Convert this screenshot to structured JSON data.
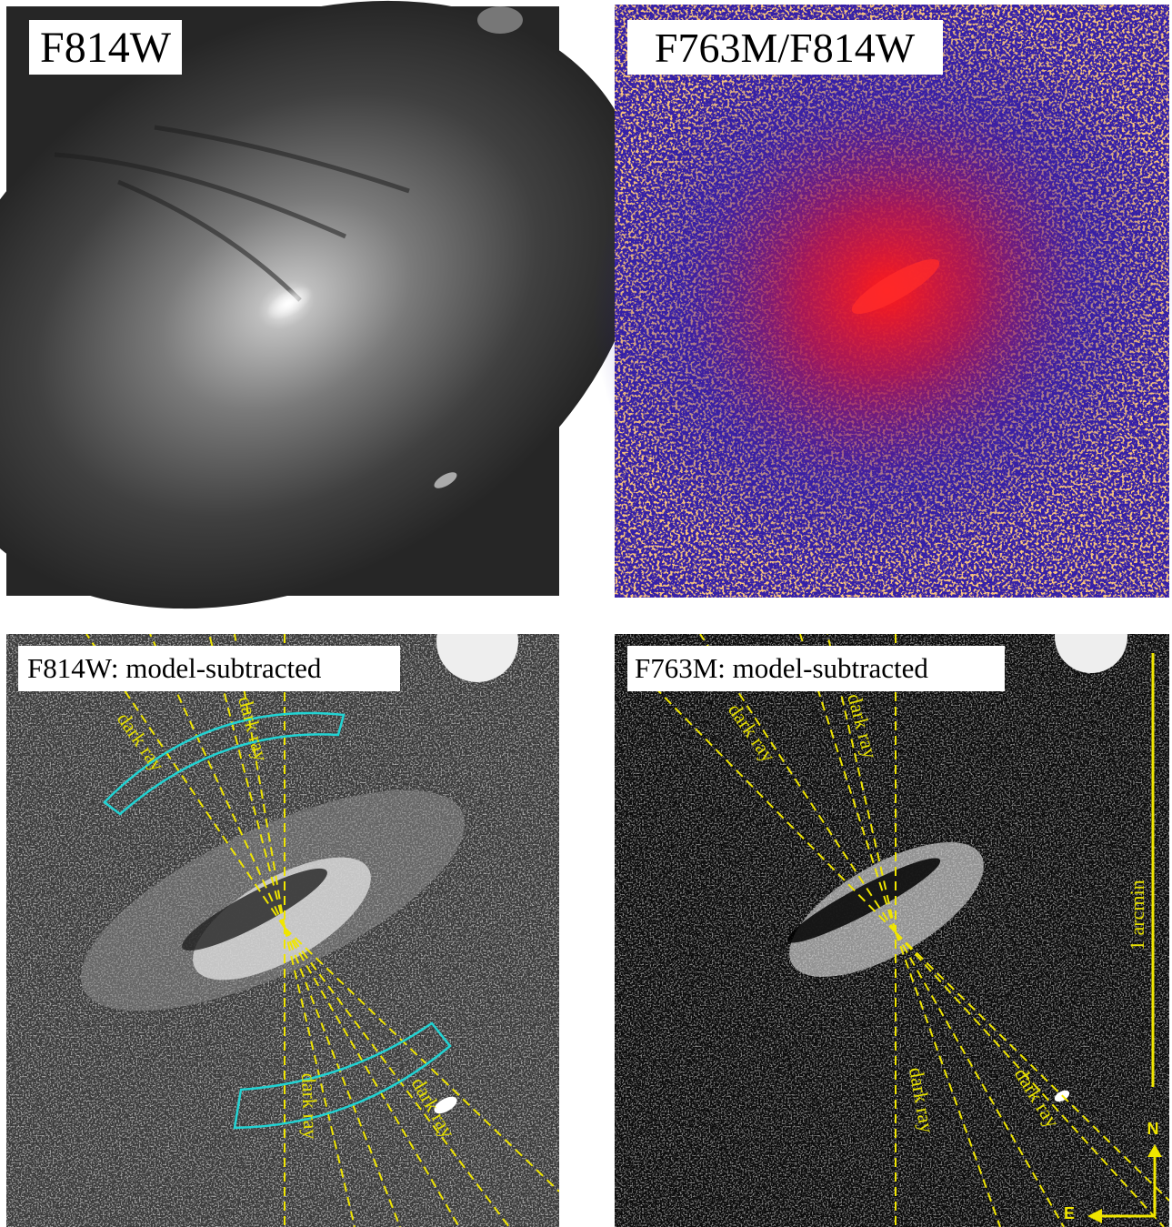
{
  "panels": [
    {
      "label": "F814W"
    },
    {
      "label": "F763M/F814W"
    },
    {
      "label": "F814W: model-subtracted",
      "annotations": [
        "dark ray",
        "dark ray",
        "dark ray",
        "dark ray"
      ]
    },
    {
      "label": "F763M: model-subtracted",
      "annotations": [
        "dark ray",
        "dark ray",
        "dark ray",
        "dark ray"
      ],
      "scale_bar": "1 arcmin",
      "compass": {
        "north": "N",
        "east": "E"
      }
    }
  ]
}
